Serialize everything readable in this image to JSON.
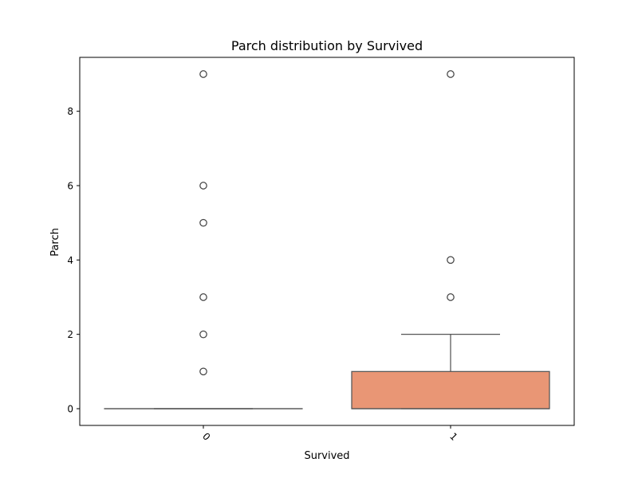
{
  "chart_data": {
    "type": "box",
    "title": "Parch distribution by Survived",
    "xlabel": "Survived",
    "ylabel": "Parch",
    "categories": [
      "0",
      "1"
    ],
    "ylim": [
      -0.45,
      9.45
    ],
    "yticks": [
      0,
      2,
      4,
      6,
      8
    ],
    "grid": false,
    "boxes": [
      {
        "category": "0",
        "q1": 0,
        "median": 0,
        "q3": 0,
        "whisker_low": 0,
        "whisker_high": 0,
        "outliers": [
          1,
          2,
          3,
          5,
          6,
          9
        ],
        "color": "#66c2a5"
      },
      {
        "category": "1",
        "q1": 0,
        "median": 0,
        "q3": 1,
        "whisker_low": 0,
        "whisker_high": 2,
        "outliers": [
          3,
          4,
          9
        ],
        "color": "#e99675"
      }
    ]
  }
}
